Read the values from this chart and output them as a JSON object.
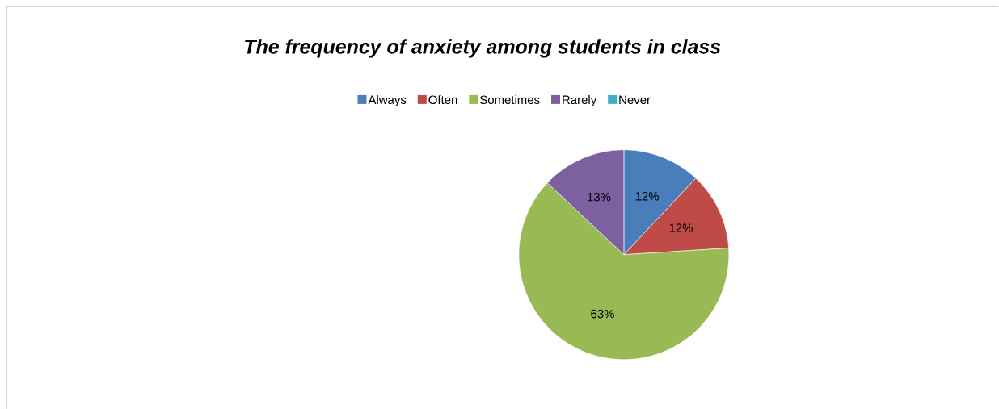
{
  "chart_data": {
    "type": "pie",
    "title": "The frequency of anxiety among students in class",
    "categories": [
      "Always",
      "Often",
      "Sometimes",
      "Rarely",
      "Never"
    ],
    "values": [
      12,
      12,
      63,
      13,
      0
    ],
    "value_labels": [
      "12%",
      "12%",
      "63%",
      "13%",
      null
    ],
    "colors": [
      "#4a7ebb",
      "#be4b48",
      "#98b954",
      "#7d60a0",
      "#46aac5"
    ],
    "legend": "top"
  }
}
